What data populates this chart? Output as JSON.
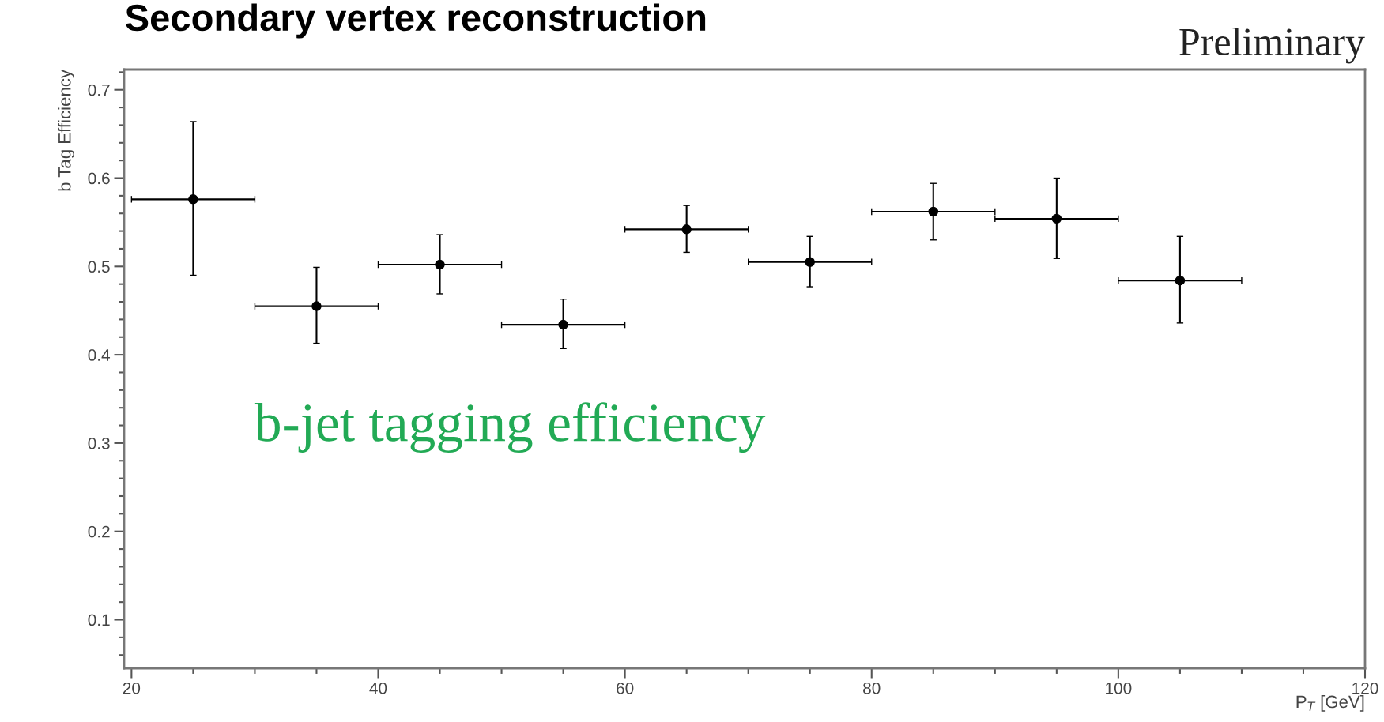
{
  "chart_data": {
    "type": "scatter",
    "title": "Secondary vertex reconstruction",
    "xlabel": "P$_{T}$ [GeV]",
    "ylabel": "b Tag Efficiency",
    "annotations": [
      "Preliminary",
      "b-jet tagging efficiency"
    ],
    "x": [
      25,
      35,
      45,
      55,
      65,
      75,
      85,
      95,
      105
    ],
    "series": [
      {
        "color": "#000000",
        "values": [
          0.576,
          0.455,
          0.502,
          0.434,
          0.542,
          0.505,
          0.562,
          0.554,
          0.484
        ],
        "errors": [
          [
            0.49,
            0.664
          ],
          [
            0.413,
            0.499
          ],
          [
            0.469,
            0.536
          ],
          [
            0.407,
            0.463
          ],
          [
            0.516,
            0.569
          ],
          [
            0.477,
            0.534
          ],
          [
            0.53,
            0.594
          ],
          [
            0.509,
            0.6
          ],
          [
            0.436,
            0.534
          ]
        ],
        "xerrors": [
          [
            20,
            30
          ],
          [
            30,
            40
          ],
          [
            40,
            50
          ],
          [
            50,
            60
          ],
          [
            60,
            70
          ],
          [
            70,
            80
          ],
          [
            80,
            90
          ],
          [
            90,
            100
          ],
          [
            100,
            110
          ]
        ]
      }
    ],
    "xlim": [
      19.4,
      120
    ],
    "ylim": [
      0.045,
      0.723
    ],
    "xticks": [
      20,
      40,
      60,
      80,
      100,
      120
    ],
    "yticks": [
      0.1,
      0.2,
      0.3,
      0.4,
      0.5,
      0.6,
      0.7
    ],
    "marker": "circle",
    "grid": false,
    "legend": false
  }
}
